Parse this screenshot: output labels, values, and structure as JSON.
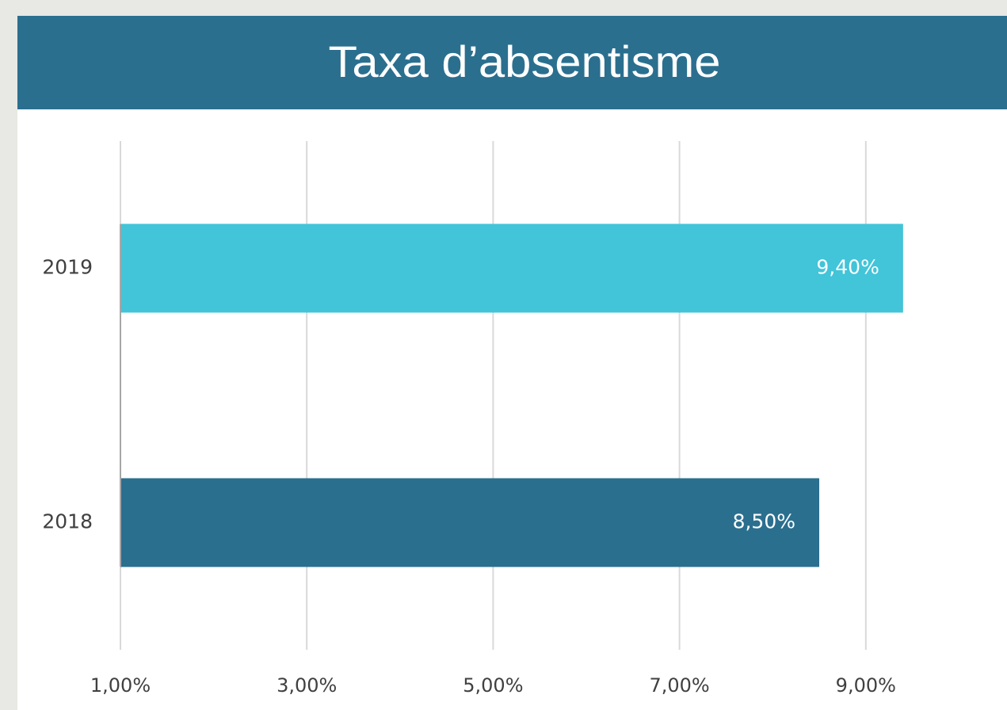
{
  "chart_data": {
    "type": "barh",
    "title": "Taxa d’absentisme",
    "categories": [
      "2019",
      "2018"
    ],
    "values": [
      9.4,
      8.5
    ],
    "value_labels": [
      "9,40%",
      "8,50%"
    ],
    "colors": [
      "#42c4d9",
      "#2b6f8f"
    ],
    "xlim": [
      1,
      10
    ],
    "xticks": [
      {
        "value": 1,
        "label": "1,00%"
      },
      {
        "value": 3,
        "label": "3,00%"
      },
      {
        "value": 5,
        "label": "5,00%"
      },
      {
        "value": 7,
        "label": "7,00%"
      },
      {
        "value": 9,
        "label": "9,00%"
      }
    ],
    "grid": true
  }
}
